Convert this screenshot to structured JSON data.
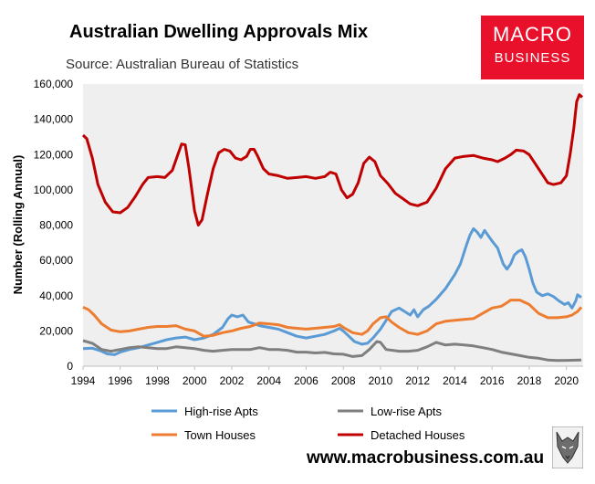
{
  "header": {
    "title": "Australian Dwelling Approvals Mix",
    "subtitle": "Source: Australian Bureau of Statistics"
  },
  "logo": {
    "line1": "MACRO",
    "line2": "BUSINESS",
    "color": "#e8102a"
  },
  "footer": {
    "url": "www.macrobusiness.com.au",
    "mascot_icon": "wolf-icon"
  },
  "chart_data": {
    "type": "line",
    "title": "Australian Dwelling Approvals Mix",
    "xlabel": "",
    "ylabel": "Number (Rolling Annual)",
    "xlim": [
      1994,
      2020.9
    ],
    "ylim": [
      0,
      160000
    ],
    "x_ticks": [
      1994,
      1996,
      1998,
      2000,
      2002,
      2004,
      2006,
      2008,
      2010,
      2012,
      2014,
      2016,
      2018,
      2020
    ],
    "y_ticks": [
      0,
      20000,
      40000,
      60000,
      80000,
      100000,
      120000,
      140000,
      160000
    ],
    "y_tick_labels": [
      "0",
      "20,000",
      "40,000",
      "60,000",
      "80,000",
      "100,000",
      "120,000",
      "140,000",
      "160,000"
    ],
    "grid": false,
    "background": "#efefef",
    "legend_position": "bottom",
    "series": [
      {
        "name": "High-rise Apts",
        "color": "#5b9bd5",
        "points": [
          [
            1994,
            10000
          ],
          [
            1994.5,
            10200
          ],
          [
            1995,
            8500
          ],
          [
            1995.3,
            7000
          ],
          [
            1995.7,
            6500
          ],
          [
            1996,
            8000
          ],
          [
            1996.5,
            9500
          ],
          [
            1997,
            10500
          ],
          [
            1997.5,
            12000
          ],
          [
            1998,
            13500
          ],
          [
            1998.5,
            15000
          ],
          [
            1999,
            16000
          ],
          [
            1999.5,
            16500
          ],
          [
            2000,
            15000
          ],
          [
            2000.5,
            16000
          ],
          [
            2001,
            18000
          ],
          [
            2001.5,
            22000
          ],
          [
            2001.8,
            27000
          ],
          [
            2002,
            29000
          ],
          [
            2002.3,
            28000
          ],
          [
            2002.6,
            29000
          ],
          [
            2002.9,
            25000
          ],
          [
            2003.2,
            24000
          ],
          [
            2003.5,
            23000
          ],
          [
            2004,
            22000
          ],
          [
            2004.5,
            21000
          ],
          [
            2005,
            19000
          ],
          [
            2005.5,
            17000
          ],
          [
            2006,
            16000
          ],
          [
            2006.5,
            17000
          ],
          [
            2007,
            18000
          ],
          [
            2007.5,
            20000
          ],
          [
            2007.8,
            21500
          ],
          [
            2008,
            20000
          ],
          [
            2008.3,
            17000
          ],
          [
            2008.6,
            14000
          ],
          [
            2009,
            12500
          ],
          [
            2009.3,
            13000
          ],
          [
            2009.6,
            16000
          ],
          [
            2010,
            21000
          ],
          [
            2010.3,
            26000
          ],
          [
            2010.6,
            31000
          ],
          [
            2011,
            33000
          ],
          [
            2011.3,
            31000
          ],
          [
            2011.6,
            29000
          ],
          [
            2011.8,
            32000
          ],
          [
            2012,
            28000
          ],
          [
            2012.3,
            32000
          ],
          [
            2012.6,
            34000
          ],
          [
            2013,
            38000
          ],
          [
            2013.5,
            44000
          ],
          [
            2014,
            52000
          ],
          [
            2014.3,
            58000
          ],
          [
            2014.6,
            68000
          ],
          [
            2014.8,
            74000
          ],
          [
            2015,
            78000
          ],
          [
            2015.2,
            76000
          ],
          [
            2015.4,
            73000
          ],
          [
            2015.6,
            77000
          ],
          [
            2015.8,
            74000
          ],
          [
            2016,
            71000
          ],
          [
            2016.3,
            67000
          ],
          [
            2016.6,
            58000
          ],
          [
            2016.8,
            55000
          ],
          [
            2017,
            58000
          ],
          [
            2017.2,
            63000
          ],
          [
            2017.4,
            65000
          ],
          [
            2017.6,
            66000
          ],
          [
            2017.8,
            62000
          ],
          [
            2018,
            55000
          ],
          [
            2018.2,
            47000
          ],
          [
            2018.4,
            42000
          ],
          [
            2018.7,
            40000
          ],
          [
            2019,
            41000
          ],
          [
            2019.3,
            39500
          ],
          [
            2019.6,
            37000
          ],
          [
            2019.9,
            35000
          ],
          [
            2020.1,
            36000
          ],
          [
            2020.3,
            33000
          ],
          [
            2020.5,
            37000
          ],
          [
            2020.6,
            40500
          ],
          [
            2020.8,
            39000
          ]
        ]
      },
      {
        "name": "Low-rise Apts",
        "color": "#7f7f7f",
        "points": [
          [
            1994,
            14500
          ],
          [
            1994.5,
            13000
          ],
          [
            1995,
            9500
          ],
          [
            1995.5,
            8500
          ],
          [
            1996,
            9500
          ],
          [
            1996.5,
            10500
          ],
          [
            1997,
            11000
          ],
          [
            1997.5,
            10500
          ],
          [
            1998,
            10000
          ],
          [
            1998.5,
            10000
          ],
          [
            1999,
            11000
          ],
          [
            1999.5,
            10500
          ],
          [
            2000,
            10000
          ],
          [
            2000.5,
            9000
          ],
          [
            2001,
            8500
          ],
          [
            2001.5,
            9000
          ],
          [
            2002,
            9500
          ],
          [
            2002.5,
            9500
          ],
          [
            2003,
            9500
          ],
          [
            2003.5,
            10500
          ],
          [
            2004,
            9500
          ],
          [
            2004.5,
            9500
          ],
          [
            2005,
            9000
          ],
          [
            2005.5,
            8000
          ],
          [
            2006,
            8000
          ],
          [
            2006.5,
            7500
          ],
          [
            2007,
            7800
          ],
          [
            2007.5,
            7000
          ],
          [
            2008,
            6800
          ],
          [
            2008.5,
            5500
          ],
          [
            2009,
            6000
          ],
          [
            2009.4,
            9500
          ],
          [
            2009.8,
            14000
          ],
          [
            2010,
            13500
          ],
          [
            2010.3,
            9500
          ],
          [
            2011,
            8500
          ],
          [
            2011.5,
            8500
          ],
          [
            2012,
            9000
          ],
          [
            2012.5,
            11000
          ],
          [
            2013,
            13500
          ],
          [
            2013.5,
            12000
          ],
          [
            2014,
            12500
          ],
          [
            2014.5,
            12000
          ],
          [
            2015,
            11500
          ],
          [
            2015.5,
            10500
          ],
          [
            2016,
            9500
          ],
          [
            2016.5,
            8000
          ],
          [
            2017,
            7000
          ],
          [
            2017.5,
            6000
          ],
          [
            2018,
            5000
          ],
          [
            2018.5,
            4500
          ],
          [
            2019,
            3500
          ],
          [
            2019.5,
            3200
          ],
          [
            2020,
            3300
          ],
          [
            2020.5,
            3400
          ],
          [
            2020.8,
            3500
          ]
        ]
      },
      {
        "name": "Town Houses",
        "color": "#ed7d31",
        "points": [
          [
            1994,
            33500
          ],
          [
            1994.3,
            32000
          ],
          [
            1994.6,
            29000
          ],
          [
            1995,
            24000
          ],
          [
            1995.5,
            20500
          ],
          [
            1996,
            19500
          ],
          [
            1996.5,
            20000
          ],
          [
            1997,
            21000
          ],
          [
            1997.5,
            22000
          ],
          [
            1998,
            22500
          ],
          [
            1998.5,
            22500
          ],
          [
            1999,
            23000
          ],
          [
            1999.5,
            21000
          ],
          [
            2000,
            20000
          ],
          [
            2000.5,
            17000
          ],
          [
            2001,
            17500
          ],
          [
            2001.5,
            19000
          ],
          [
            2002,
            20000
          ],
          [
            2002.5,
            21500
          ],
          [
            2003,
            22500
          ],
          [
            2003.5,
            24500
          ],
          [
            2004,
            24000
          ],
          [
            2004.5,
            23500
          ],
          [
            2005,
            22000
          ],
          [
            2005.5,
            21500
          ],
          [
            2006,
            21000
          ],
          [
            2006.5,
            21500
          ],
          [
            2007,
            22000
          ],
          [
            2007.5,
            22500
          ],
          [
            2007.8,
            23500
          ],
          [
            2008,
            22000
          ],
          [
            2008.5,
            19000
          ],
          [
            2009,
            18000
          ],
          [
            2009.3,
            20000
          ],
          [
            2009.6,
            24000
          ],
          [
            2010,
            27500
          ],
          [
            2010.3,
            28000
          ],
          [
            2010.6,
            25000
          ],
          [
            2011,
            22000
          ],
          [
            2011.5,
            19000
          ],
          [
            2012,
            18000
          ],
          [
            2012.5,
            20000
          ],
          [
            2013,
            24000
          ],
          [
            2013.5,
            25500
          ],
          [
            2014,
            26000
          ],
          [
            2014.5,
            26500
          ],
          [
            2015,
            27000
          ],
          [
            2015.5,
            30000
          ],
          [
            2016,
            33000
          ],
          [
            2016.5,
            34000
          ],
          [
            2016.8,
            36000
          ],
          [
            2017,
            37500
          ],
          [
            2017.5,
            37500
          ],
          [
            2018,
            35000
          ],
          [
            2018.5,
            30000
          ],
          [
            2019,
            27500
          ],
          [
            2019.5,
            27500
          ],
          [
            2020,
            28000
          ],
          [
            2020.3,
            29000
          ],
          [
            2020.6,
            31000
          ],
          [
            2020.8,
            33500
          ]
        ]
      },
      {
        "name": "Detached Houses",
        "color": "#c00000",
        "points": [
          [
            1994,
            131000
          ],
          [
            1994.2,
            129000
          ],
          [
            1994.5,
            118000
          ],
          [
            1994.8,
            103000
          ],
          [
            1995.2,
            93000
          ],
          [
            1995.6,
            87500
          ],
          [
            1996,
            87000
          ],
          [
            1996.4,
            90000
          ],
          [
            1996.8,
            96000
          ],
          [
            1997.2,
            103000
          ],
          [
            1997.5,
            107000
          ],
          [
            1998,
            107500
          ],
          [
            1998.4,
            107000
          ],
          [
            1998.8,
            111000
          ],
          [
            1999.1,
            120000
          ],
          [
            1999.3,
            126000
          ],
          [
            1999.5,
            125500
          ],
          [
            1999.7,
            112000
          ],
          [
            2000,
            88000
          ],
          [
            2000.2,
            80000
          ],
          [
            2000.4,
            83000
          ],
          [
            2000.7,
            98000
          ],
          [
            2001,
            112000
          ],
          [
            2001.3,
            121000
          ],
          [
            2001.6,
            123000
          ],
          [
            2001.9,
            122000
          ],
          [
            2002.2,
            118000
          ],
          [
            2002.5,
            117000
          ],
          [
            2002.8,
            119000
          ],
          [
            2003,
            123000
          ],
          [
            2003.2,
            123000
          ],
          [
            2003.4,
            119000
          ],
          [
            2003.7,
            112000
          ],
          [
            2004,
            109000
          ],
          [
            2004.5,
            108000
          ],
          [
            2005,
            106500
          ],
          [
            2005.5,
            107000
          ],
          [
            2006,
            107500
          ],
          [
            2006.5,
            106500
          ],
          [
            2007,
            107500
          ],
          [
            2007.3,
            110000
          ],
          [
            2007.6,
            109000
          ],
          [
            2007.9,
            100000
          ],
          [
            2008.2,
            95500
          ],
          [
            2008.5,
            97500
          ],
          [
            2008.8,
            104000
          ],
          [
            2009.1,
            115000
          ],
          [
            2009.4,
            118500
          ],
          [
            2009.7,
            116000
          ],
          [
            2010,
            108000
          ],
          [
            2010.4,
            103500
          ],
          [
            2010.8,
            98000
          ],
          [
            2011.2,
            95000
          ],
          [
            2011.6,
            92000
          ],
          [
            2012,
            91000
          ],
          [
            2012.5,
            93000
          ],
          [
            2013,
            101000
          ],
          [
            2013.5,
            112000
          ],
          [
            2014,
            118000
          ],
          [
            2014.5,
            119000
          ],
          [
            2015,
            119500
          ],
          [
            2015.5,
            118000
          ],
          [
            2016,
            117000
          ],
          [
            2016.3,
            116000
          ],
          [
            2016.7,
            118000
          ],
          [
            2017,
            120000
          ],
          [
            2017.3,
            122500
          ],
          [
            2017.7,
            122000
          ],
          [
            2018,
            120000
          ],
          [
            2018.5,
            112000
          ],
          [
            2019,
            104000
          ],
          [
            2019.3,
            103000
          ],
          [
            2019.7,
            104000
          ],
          [
            2020,
            108000
          ],
          [
            2020.2,
            120000
          ],
          [
            2020.4,
            135000
          ],
          [
            2020.55,
            150000
          ],
          [
            2020.7,
            154000
          ],
          [
            2020.85,
            152500
          ]
        ]
      }
    ]
  }
}
